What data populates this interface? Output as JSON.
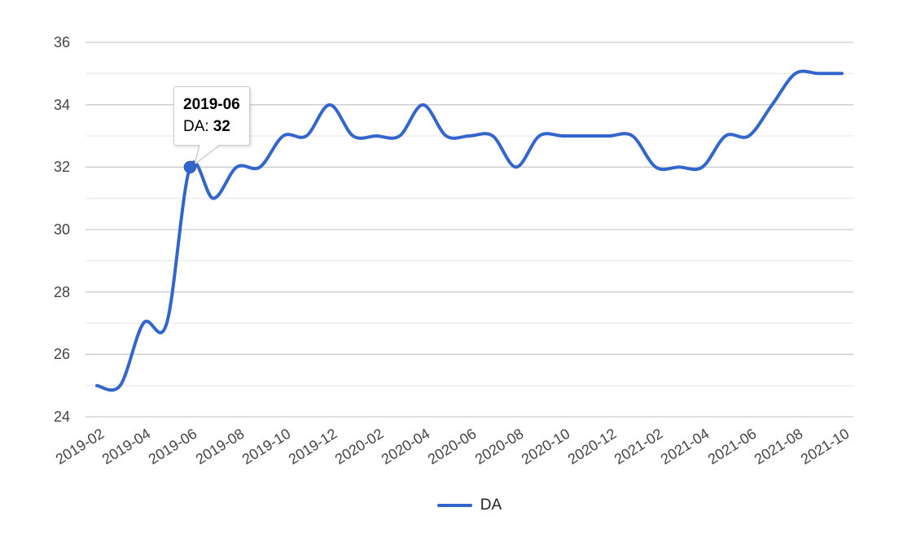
{
  "chart_data": {
    "type": "line",
    "title": "",
    "x": [
      "2019-02",
      "2019-03",
      "2019-04",
      "2019-05",
      "2019-06",
      "2019-07",
      "2019-08",
      "2019-09",
      "2019-10",
      "2019-11",
      "2019-12",
      "2020-01",
      "2020-02",
      "2020-03",
      "2020-04",
      "2020-05",
      "2020-06",
      "2020-07",
      "2020-08",
      "2020-09",
      "2020-10",
      "2020-11",
      "2020-12",
      "2021-01",
      "2021-02",
      "2021-03",
      "2021-04",
      "2021-05",
      "2021-06",
      "2021-07",
      "2021-08",
      "2021-09",
      "2021-10"
    ],
    "series": [
      {
        "name": "DA",
        "values": [
          25,
          25,
          27,
          27,
          32,
          31,
          32,
          32,
          33,
          33,
          34,
          33,
          33,
          33,
          34,
          33,
          33,
          33,
          32,
          33,
          33,
          33,
          33,
          33,
          32,
          32,
          32,
          33,
          33,
          34,
          35,
          35,
          35
        ]
      }
    ],
    "x_tick_labels": [
      "2019-02",
      "2019-04",
      "2019-06",
      "2019-08",
      "2019-10",
      "2019-12",
      "2020-02",
      "2020-04",
      "2020-06",
      "2020-08",
      "2020-10",
      "2020-12",
      "2021-02",
      "2021-04",
      "2021-06",
      "2021-08",
      "2021-10"
    ],
    "x_tick_every": 2,
    "yticks": [
      36,
      34,
      32,
      30,
      28,
      26,
      24
    ],
    "yticks_minor": [
      35,
      33,
      31,
      29,
      27,
      25
    ],
    "ylim": [
      24,
      36
    ],
    "grid": "horizontal",
    "line_smoothing": "catmull-rom",
    "legend_position": "bottom"
  },
  "tooltip": {
    "date": "2019-06",
    "series_label": "DA:",
    "value": "32",
    "point_index": 4
  },
  "legend": {
    "label": "DA"
  },
  "colors": {
    "series": "#3366cc",
    "point": "#3366cc",
    "point_ring": "#2d59b8",
    "grid_major": "#cccccc",
    "grid_minor": "#ebebeb",
    "axis_text": "#444444",
    "tooltip_border": "#c9c9c9",
    "background": "#ffffff"
  }
}
